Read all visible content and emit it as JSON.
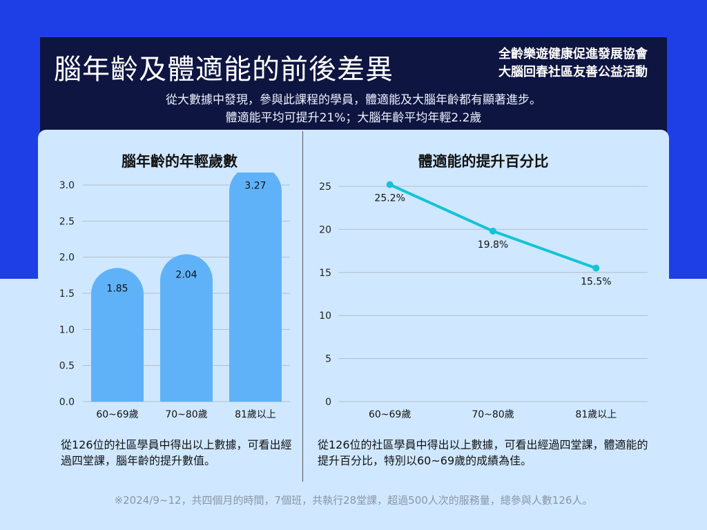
{
  "header": {
    "title": "腦年齡及體適能的前後差異",
    "org_line1": "全齡樂遊健康促進發展協會",
    "org_line2": "大腦回春社區友善公益活動",
    "subtitle_line1": "從大數據中發現，參與此課程的學員，體適能及大腦年齡都有顯著進步。",
    "subtitle_line2": "體適能平均可提升21%；大腦年齡平均年輕2.2歲"
  },
  "captions": {
    "left": "從126位的社區學員中得出以上數據，可看出經過四堂課，腦年齡的提升數值。",
    "right": "從126位的社區學員中得出以上數據，可看出經過四堂課，體適能的提升百分比，特別以60~69歲的成績為佳。"
  },
  "footnote": "※2024/9~12，共四個月的時間，7個班，共執行28堂課，超過500人次的服務量，總參與人數126人。",
  "colors": {
    "bar": "#5fb2f7",
    "line": "#14c3d6",
    "grid": "#b5bcc6",
    "header_bg": "#0e1540",
    "top_bg": "#1f3fe6",
    "panel_bg": "#cfe8ff"
  },
  "chart_data": [
    {
      "type": "bar",
      "title": "腦年齡的年輕歲數",
      "categories": [
        "60~69歲",
        "70~80歲",
        "81歲以上"
      ],
      "values": [
        1.85,
        2.04,
        3.27
      ],
      "value_labels": [
        "1.85",
        "2.04",
        "3.27"
      ],
      "yticks": [
        "0.0",
        "0.5",
        "1.0",
        "1.5",
        "2.0",
        "2.5",
        "3.0"
      ],
      "ylim": [
        0,
        3.0
      ],
      "grid": true
    },
    {
      "type": "line",
      "title": "體適能的提升百分比",
      "categories": [
        "60~69歲",
        "70~80歲",
        "81歲以上"
      ],
      "values": [
        25.2,
        19.8,
        15.5
      ],
      "value_labels": [
        "25.2%",
        "19.8%",
        "15.5%"
      ],
      "yticks": [
        "0",
        "5",
        "10",
        "15",
        "20",
        "25"
      ],
      "ylim": [
        0,
        25
      ],
      "grid": true
    }
  ]
}
